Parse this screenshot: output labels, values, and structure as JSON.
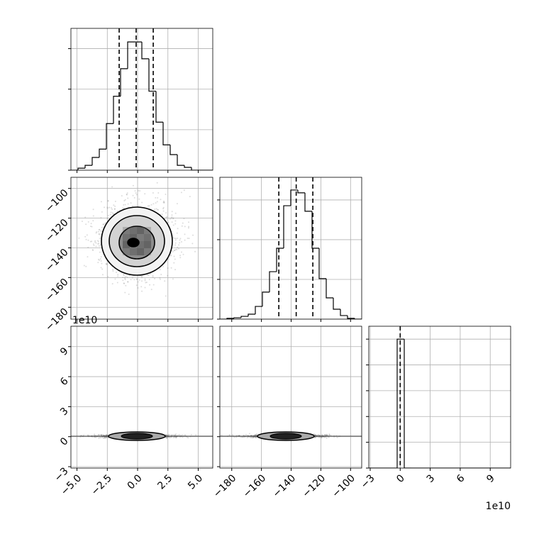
{
  "chart_data": [
    {
      "type": "histogram",
      "xlim": [
        -5.5,
        6.2
      ],
      "ylim": [
        0,
        700
      ],
      "xticks": [
        -5,
        -2.5,
        0,
        2.5,
        5
      ],
      "yticks": [
        0,
        200,
        400,
        600
      ],
      "xtick_labels": false,
      "ytick_labels": false,
      "grid": true,
      "color": "#000000",
      "bins": [
        -5.5,
        -4.915,
        -4.33,
        -3.745,
        -3.16,
        -2.575,
        -1.99,
        -1.405,
        -0.82,
        -0.235,
        0.35,
        0.935,
        1.52,
        2.105,
        2.69,
        3.275,
        3.86,
        4.445,
        5.03,
        5.615,
        6.2
      ],
      "counts": [
        0,
        10,
        24,
        63,
        104,
        230,
        365,
        501,
        633,
        633,
        550,
        390,
        237,
        125,
        77,
        24,
        14,
        0,
        0,
        0
      ],
      "quantiles": [
        -1.52,
        -0.12,
        1.29
      ]
    },
    {
      "type": "hist2d",
      "xlim": [
        -5.5,
        6.2
      ],
      "ylim": [
        -188,
        -92.5
      ],
      "xticks": [
        -5,
        -2.5,
        0,
        2.5,
        5
      ],
      "yticks": [
        {
          "value": -100,
          "label": "−100"
        },
        {
          "value": -120,
          "label": "−120"
        },
        {
          "value": -140,
          "label": "−140"
        },
        {
          "value": -160,
          "label": "−160"
        },
        {
          "value": -180,
          "label": "−180"
        }
      ],
      "xtick_labels": false,
      "ytick_labels": true,
      "grid": true
    },
    {
      "type": "histogram",
      "xlim": [
        -188,
        -92.5
      ],
      "ylim": [
        0,
        714
      ],
      "xticks": [
        -180,
        -160,
        -140,
        -120,
        -100
      ],
      "yticks": [
        0,
        200,
        400,
        600
      ],
      "xtick_labels": false,
      "ytick_labels": false,
      "grid": true,
      "color": "#000000",
      "bins": [
        -188,
        -183.225,
        -178.45,
        -173.675,
        -168.9,
        -164.125,
        -159.35,
        -154.575,
        -149.8,
        -145.025,
        -140.25,
        -135.475,
        -130.7,
        -125.925,
        -121.15,
        -116.375,
        -111.6,
        -106.825,
        -102.05,
        -97.275,
        -92.5
      ],
      "counts": [
        0,
        4,
        7,
        14,
        25,
        64,
        136,
        239,
        357,
        571,
        650,
        636,
        543,
        357,
        204,
        107,
        50,
        18,
        4,
        0
      ],
      "quantiles": [
        -148.3,
        -136.6,
        -125.4
      ]
    },
    {
      "type": "hist2d",
      "xlim": [
        -5.5,
        6.2
      ],
      "ylim": [
        -3.14,
        11.04
      ],
      "xticks": [
        {
          "value": -5,
          "label": "−5.0"
        },
        {
          "value": -2.5,
          "label": "−2.5"
        },
        {
          "value": 0,
          "label": "0.0"
        },
        {
          "value": 2.5,
          "label": "2.5"
        },
        {
          "value": 5,
          "label": "5.0"
        }
      ],
      "yticks": [
        {
          "value": -3,
          "label": "−3"
        },
        0,
        3,
        6,
        9
      ],
      "xtick_labels": true,
      "ytick_labels": true,
      "grid": true,
      "y_offset_label": "1e10"
    },
    {
      "type": "hist2d",
      "xlim": [
        -188,
        -92.5
      ],
      "ylim": [
        -3.14,
        11.04
      ],
      "xticks": [
        {
          "value": -180,
          "label": "−180"
        },
        {
          "value": -160,
          "label": "−160"
        },
        {
          "value": -140,
          "label": "−140"
        },
        {
          "value": -120,
          "label": "−120"
        },
        {
          "value": -100,
          "label": "−100"
        }
      ],
      "yticks": [
        -3,
        0,
        3,
        6,
        9
      ],
      "xtick_labels": true,
      "ytick_labels": false,
      "grid": true
    },
    {
      "type": "histogram",
      "xlim": [
        -3.14,
        11.04
      ],
      "ylim": [
        0,
        11000
      ],
      "xticks": [
        {
          "value": -3,
          "label": "−3"
        },
        0,
        3,
        6,
        9
      ],
      "yticks": [
        0,
        2000,
        4000,
        6000,
        8000,
        10000
      ],
      "xtick_labels": true,
      "ytick_labels": false,
      "grid": true,
      "color": "#000000",
      "bins": [
        -3.14,
        -2.431,
        -1.722,
        -1.013,
        -0.304,
        0.405,
        1.114,
        1.823,
        2.532,
        3.241,
        3.95,
        4.659,
        5.368,
        6.077,
        6.786,
        7.495,
        8.204,
        8.913,
        9.622,
        10.331,
        11.04
      ],
      "counts": [
        0,
        0,
        0,
        0,
        10000,
        0,
        0,
        0,
        0,
        0,
        0,
        0,
        0,
        0,
        0,
        0,
        0,
        0,
        0,
        0
      ],
      "quantiles": [
        0
      ],
      "x_offset_label": "1e10"
    }
  ]
}
